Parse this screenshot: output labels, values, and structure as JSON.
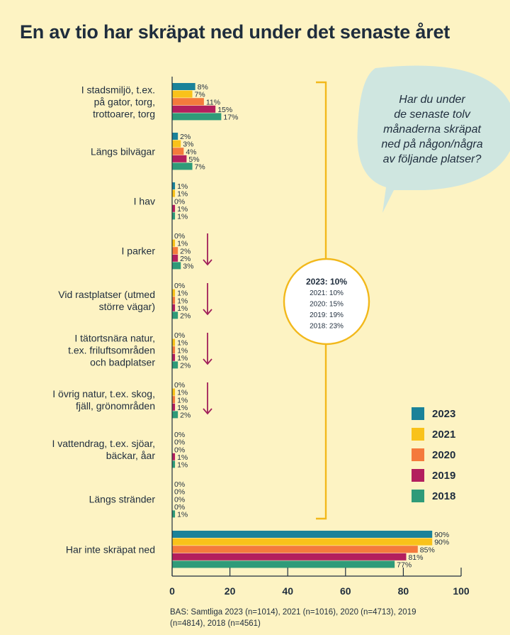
{
  "title": "En av tio har skräpat ned under det senaste året",
  "question": [
    "Har du under",
    "de senaste tolv",
    "månaderna skräpat",
    "ned på någon/några",
    "av följande platser?"
  ],
  "total_summary": [
    "2023: 10%",
    "2021: 10%",
    "2020: 15%",
    "2019: 19%",
    "2018: 23%"
  ],
  "base_note": "BAS: Samtliga 2023 (n=1014), 2021 (n=1016), 2020 (n=4713), 2019 (n=4814), 2018 (n=4561)",
  "colors": {
    "2023": "#1a8299",
    "2021": "#f9c21a",
    "2020": "#f47a3c",
    "2019": "#b31f5e",
    "2018": "#2f9b79",
    "accent_bracket": "#f2b81b",
    "arrow": "#a01f5a"
  },
  "chart_data": {
    "type": "bar",
    "orientation": "horizontal",
    "xlim": [
      0,
      100
    ],
    "xticks": [
      "0",
      "20",
      "40",
      "60",
      "80",
      "100"
    ],
    "legend_position": "right",
    "series": [
      {
        "name": "2023",
        "color": "#1a8299"
      },
      {
        "name": "2021",
        "color": "#f9c21a"
      },
      {
        "name": "2020",
        "color": "#f47a3c"
      },
      {
        "name": "2019",
        "color": "#b31f5e"
      },
      {
        "name": "2018",
        "color": "#2f9b79"
      }
    ],
    "categories": [
      {
        "label": [
          "I stadsmiljö, t.ex.",
          "på gator, torg,",
          "trottoarer, torg"
        ],
        "values": [
          8,
          7,
          11,
          15,
          17
        ],
        "labels": [
          "8%",
          "7%",
          "11%",
          "15%",
          "17%"
        ],
        "arrow": false
      },
      {
        "label": [
          "Längs bilvägar"
        ],
        "values": [
          2,
          3,
          4,
          5,
          7
        ],
        "labels": [
          "2%",
          "3%",
          "4%",
          "5%",
          "7%"
        ],
        "arrow": false
      },
      {
        "label": [
          "I hav"
        ],
        "values": [
          1,
          1,
          0,
          1,
          1
        ],
        "labels": [
          "1%",
          "1%",
          "0%",
          "1%",
          "1%"
        ],
        "arrow": false
      },
      {
        "label": [
          "I parker"
        ],
        "values": [
          0,
          1,
          2,
          2,
          3
        ],
        "labels": [
          "0%",
          "1%",
          "2%",
          "2%",
          "3%"
        ],
        "arrow": true
      },
      {
        "label": [
          "Vid rastplatser (utmed",
          "större vägar)"
        ],
        "values": [
          0,
          1,
          1,
          1,
          2
        ],
        "labels": [
          "0%",
          "1%",
          "1%",
          "1%",
          "2%"
        ],
        "arrow": true
      },
      {
        "label": [
          "I tätortsnära natur,",
          "t.ex. friluftsområden",
          "och badplatser"
        ],
        "values": [
          0,
          1,
          1,
          1,
          2
        ],
        "labels": [
          "0%",
          "1%",
          "1%",
          "1%",
          "2%"
        ],
        "arrow": true
      },
      {
        "label": [
          "I övrig natur, t.ex. skog,",
          "fjäll, grönområden"
        ],
        "values": [
          0,
          1,
          1,
          1,
          2
        ],
        "labels": [
          "0%",
          "1%",
          "1%",
          "1%",
          "2%"
        ],
        "arrow": true
      },
      {
        "label": [
          "I vattendrag, t.ex. sjöar,",
          "bäckar, åar"
        ],
        "values": [
          0,
          0,
          0,
          1,
          1
        ],
        "labels": [
          "0%",
          "0%",
          "0%",
          "1%",
          "1%"
        ],
        "arrow": false
      },
      {
        "label": [
          "Längs stränder"
        ],
        "values": [
          0,
          0,
          0,
          0,
          1
        ],
        "labels": [
          "0%",
          "0%",
          "0%",
          "0%",
          "1%"
        ],
        "arrow": false
      },
      {
        "label": [
          "Har inte skräpat ned"
        ],
        "values": [
          90,
          90,
          85,
          81,
          77
        ],
        "labels": [
          "90%",
          "90%",
          "85%",
          "81%",
          "77%"
        ],
        "arrow": false
      }
    ]
  }
}
